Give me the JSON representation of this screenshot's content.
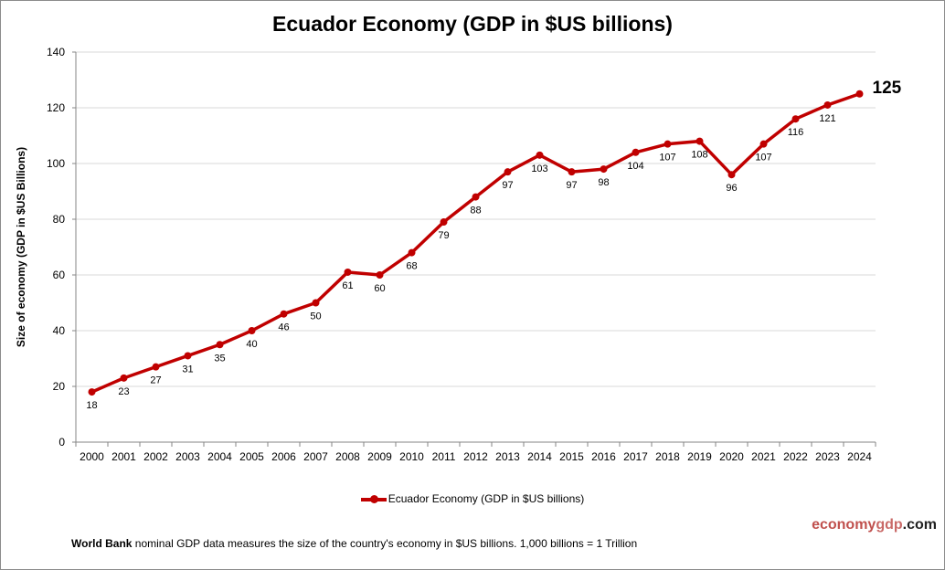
{
  "chart_data": {
    "type": "line",
    "title": "Ecuador Economy (GDP in $US billions)",
    "ylabel": "Size of economy (GDP in $US Billions)",
    "xlabel": "",
    "ylim": [
      0,
      140
    ],
    "yticks": [
      0,
      20,
      40,
      60,
      80,
      100,
      120,
      140
    ],
    "grid": true,
    "legend_position": "bottom",
    "categories": [
      "2000",
      "2001",
      "2002",
      "2003",
      "2004",
      "2005",
      "2006",
      "2007",
      "2008",
      "2009",
      "2010",
      "2011",
      "2012",
      "2013",
      "2014",
      "2015",
      "2016",
      "2017",
      "2018",
      "2019",
      "2020",
      "2021",
      "2022",
      "2023",
      "2024"
    ],
    "series": [
      {
        "name": "Ecuador Economy (GDP in $US billions)",
        "color": "#c00000",
        "values": [
          18,
          23,
          27,
          31,
          35,
          40,
          46,
          50,
          61,
          60,
          68,
          79,
          88,
          97,
          103,
          97,
          98,
          104,
          107,
          108,
          96,
          107,
          116,
          121,
          125
        ]
      }
    ]
  },
  "footer": {
    "source": "World Bank",
    "text": " nominal GDP data  measures the size of the country's economy in $US billions. 1,000 billions = 1 Trillion"
  },
  "brand": {
    "part1": "economy",
    "part2": "gdp",
    "part3": ".com"
  }
}
